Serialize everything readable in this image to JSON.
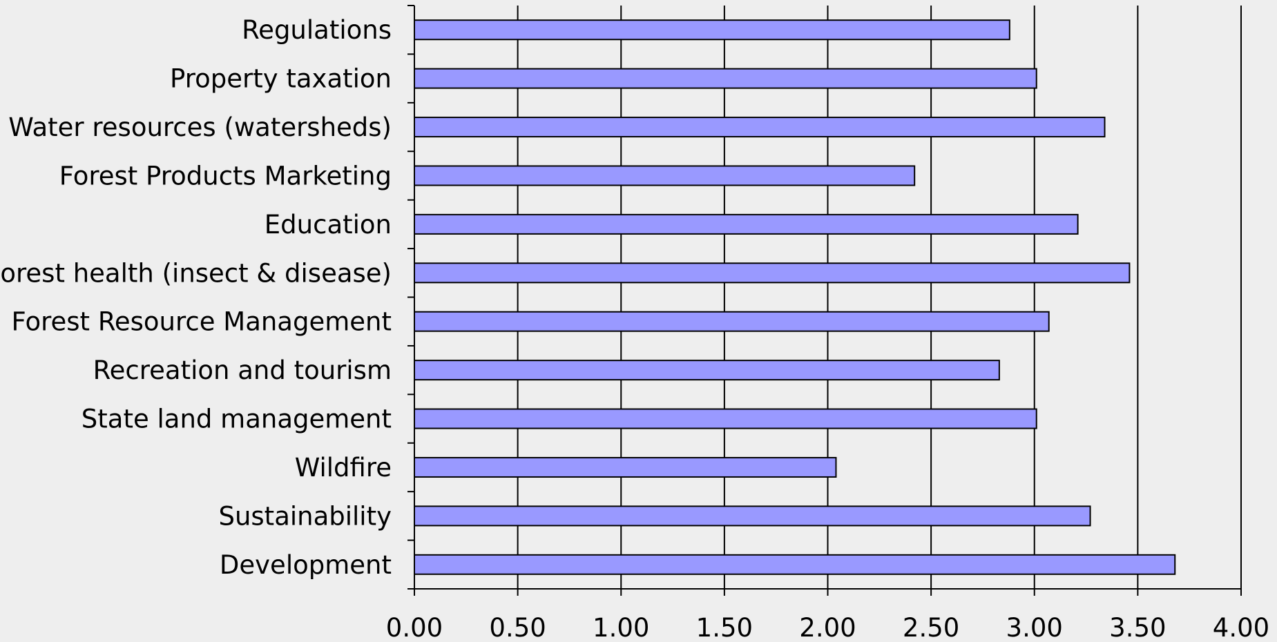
{
  "chart_data": {
    "type": "bar",
    "orientation": "horizontal",
    "title": "",
    "xlabel": "",
    "ylabel": "",
    "categories": [
      "Regulations",
      "Property taxation",
      "Water resources (watersheds)",
      "Forest Products Marketing",
      "Education",
      "Forest health (insect & disease)",
      "Forest Resource Management",
      "Recreation and tourism",
      "State land management",
      "Wildfire",
      "Sustainability",
      "Development"
    ],
    "values": [
      2.88,
      3.01,
      3.34,
      2.42,
      3.21,
      3.46,
      3.07,
      2.83,
      3.01,
      2.04,
      3.27,
      3.68
    ],
    "xlim": [
      0,
      4
    ],
    "x_ticks": [
      "0.00",
      "0.50",
      "1.00",
      "1.50",
      "2.00",
      "2.50",
      "3.00",
      "3.50",
      "4.00"
    ],
    "grid": "vertical",
    "legend": "none",
    "bar_color": "#9999ff",
    "background_color": "#eeeeee"
  }
}
